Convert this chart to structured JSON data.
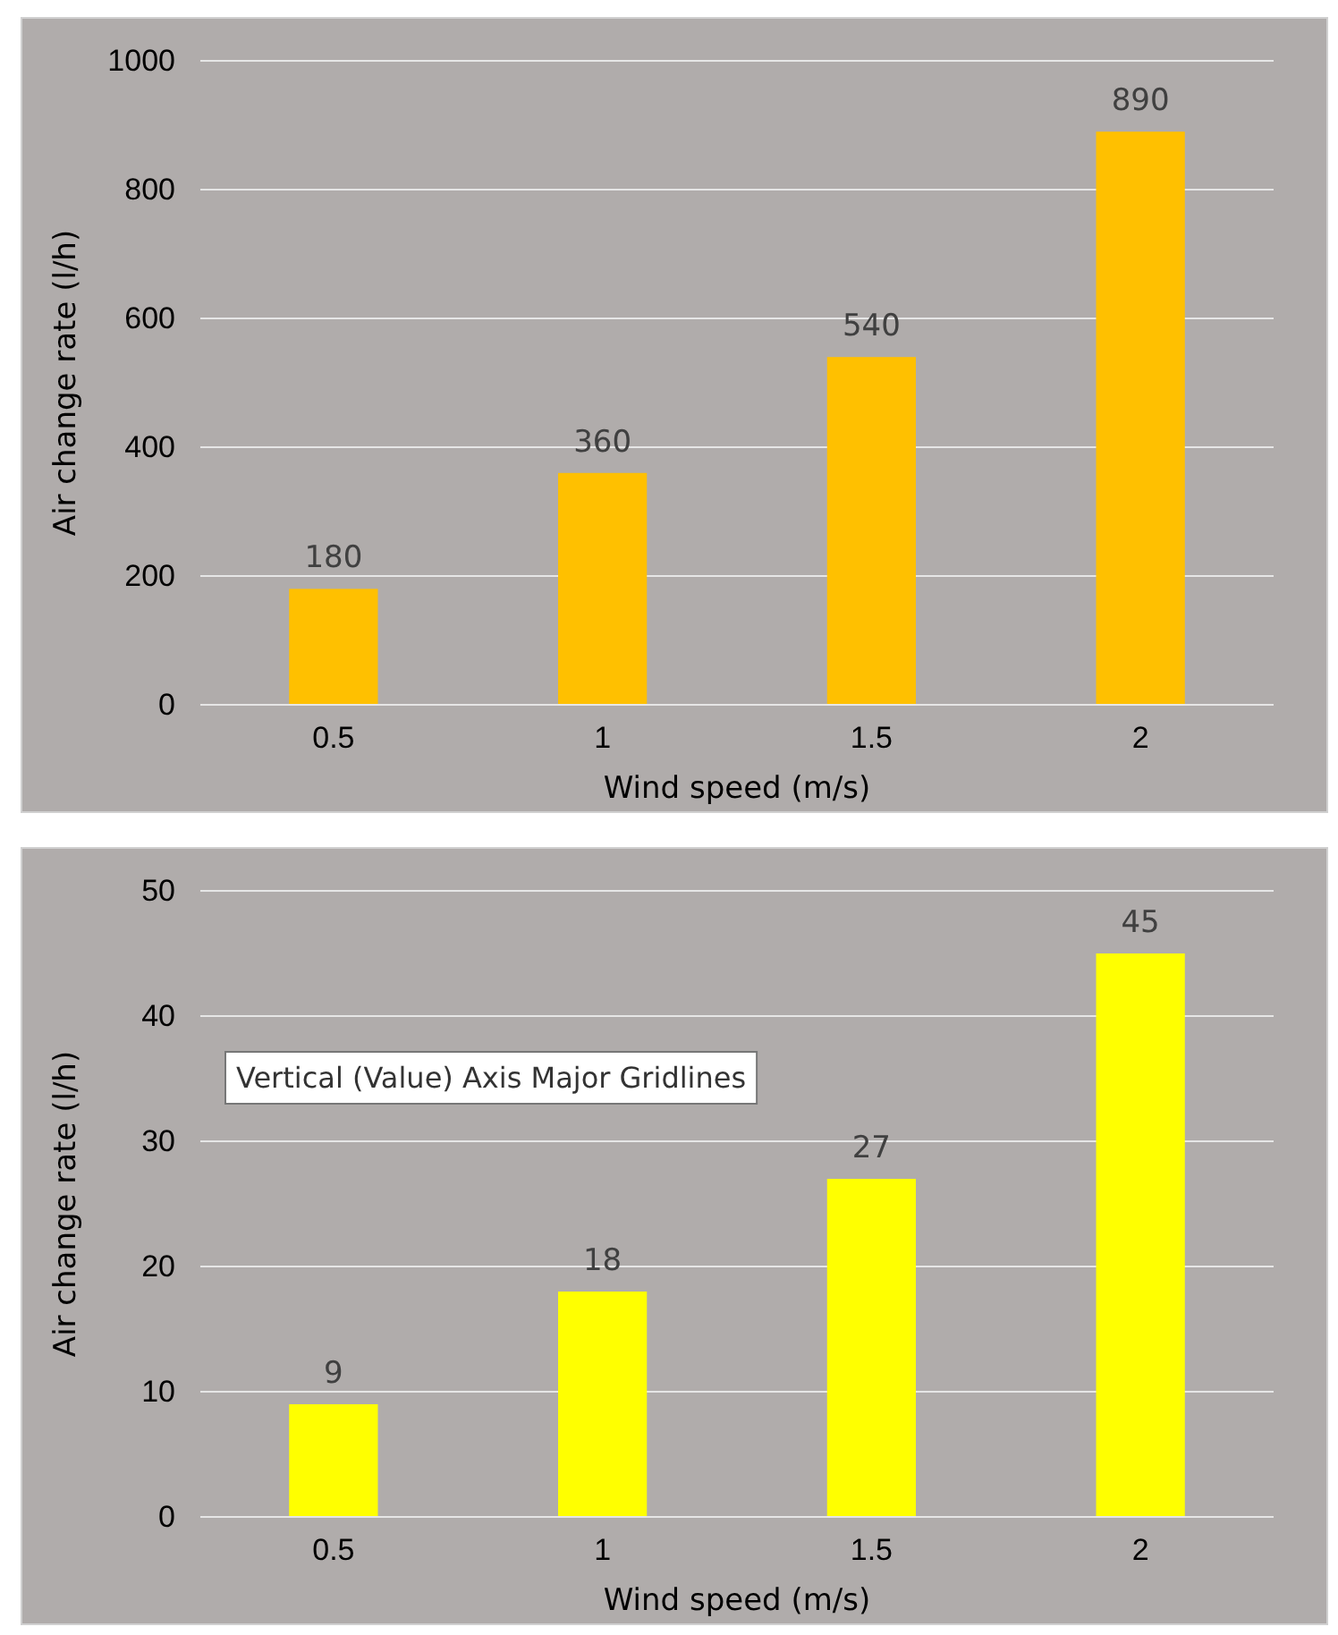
{
  "chart_data": [
    {
      "type": "bar",
      "categories": [
        "0.5",
        "1",
        "1.5",
        "2"
      ],
      "values": [
        180,
        360,
        540,
        890
      ],
      "color": "#ffc000",
      "ylim": [
        0,
        1000
      ],
      "yticks": [
        0,
        200,
        400,
        600,
        800,
        1000
      ],
      "grid": "y",
      "data_labels": true,
      "xlabel": "Wind speed (m/s)",
      "ylabel": "Air change rate (l/h)"
    },
    {
      "type": "bar",
      "categories": [
        "0.5",
        "1",
        "1.5",
        "2"
      ],
      "values": [
        9,
        18,
        27,
        45
      ],
      "color": "#ffff00",
      "ylim": [
        0,
        50
      ],
      "yticks": [
        0,
        10,
        20,
        30,
        40,
        50
      ],
      "grid": "y",
      "data_labels": true,
      "xlabel": "Wind speed (m/s)",
      "ylabel": "Air change rate (l/h)",
      "annotations": [
        "Vertical (Value) Axis Major Gridlines"
      ]
    }
  ]
}
